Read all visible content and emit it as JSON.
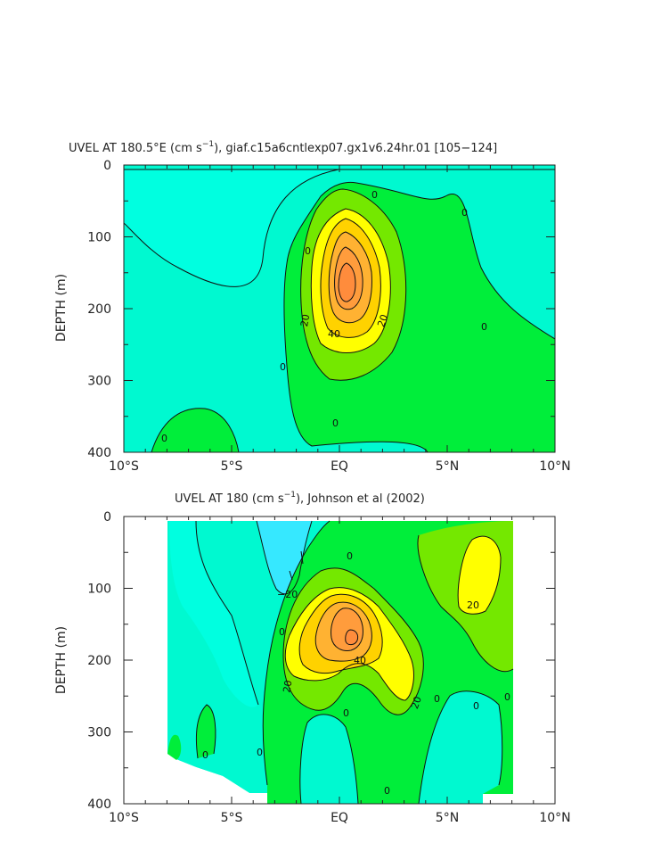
{
  "chart_data": [
    {
      "type": "contour",
      "title": "UVEL AT 180.5°E (cm s⁻¹), giaf.c15a6cntlexp07.gx1v6.24hr.01 [105−124]",
      "title_main": "UVEL AT 180.5°E (cm s",
      "title_sup": "−1",
      "title_rest": "), giaf.c15a6cntlexp07.gx1v6.24hr.01 [105−124]",
      "ylabel": "DEPTH (m)",
      "xlabel": "",
      "x_ticks": [
        "10°S",
        "5°S",
        "EQ",
        "5°N",
        "10°N"
      ],
      "y_ticks": [
        "0",
        "100",
        "200",
        "300",
        "400"
      ],
      "xlim": [
        -10,
        10
      ],
      "ylim": [
        400,
        0
      ],
      "contour_interval": 10,
      "max_core": {
        "lat": 0,
        "depth": 160,
        "value": 60
      },
      "contour_labels": [
        "0",
        "0",
        "0",
        "0",
        "0",
        "0",
        "0",
        "0",
        "20",
        "20",
        "40"
      ]
    },
    {
      "type": "contour",
      "title": "UVEL AT 180 (cm s⁻¹), Johnson et al (2002)",
      "title_main": "UVEL AT 180 (cm s",
      "title_sup": "−1",
      "title_rest": "), Johnson et al (2002)",
      "ylabel": "DEPTH (m)",
      "xlabel": "",
      "x_ticks": [
        "10°S",
        "5°S",
        "EQ",
        "5°N",
        "10°N"
      ],
      "y_ticks": [
        "0",
        "100",
        "200",
        "300",
        "400"
      ],
      "xlim": [
        -10,
        10
      ],
      "ylim": [
        400,
        0
      ],
      "data_lat_range": [
        -8,
        8
      ],
      "contour_interval": 10,
      "max_core": {
        "lat": 0.5,
        "depth": 170,
        "value": 60
      },
      "contour_labels": [
        "−20",
        "0",
        "0",
        "0",
        "0",
        "0",
        "0",
        "0",
        "0",
        "0",
        "20",
        "20",
        "20",
        "40"
      ]
    }
  ],
  "colors": {
    "neg20": "#36e8ff",
    "neg10": "#00ffdd",
    "zero": "#00f9d0",
    "p0": "#00ee3a",
    "p10": "#74e800",
    "p20": "#ffff00",
    "p30": "#ffd200",
    "p40": "#ffb232",
    "p50": "#ff9c3c",
    "p60": "#ff8c3c",
    "line": "#111111"
  }
}
